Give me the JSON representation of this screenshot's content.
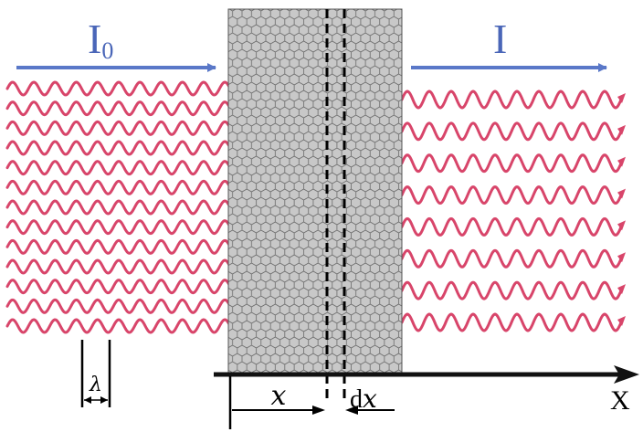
{
  "labels": {
    "incident_intensity_base": "I",
    "incident_intensity_sub": "0",
    "transmitted_intensity": "I",
    "wavelength": "λ",
    "depth": "x",
    "slab_thickness_d": "d",
    "slab_thickness_x": "x",
    "axis": "X"
  },
  "colors": {
    "wave": "#d8456a",
    "intensity_arrow": "#5a78c8",
    "label_blue": "#4a66b8",
    "slab_fill": "#c8c8c8",
    "hex_stroke": "#6a6a6a",
    "axis": "#111111"
  },
  "waves": {
    "incident_rows": 13,
    "transmitted_rows": 8,
    "incident_cycles": 10.5,
    "transmitted_cycles": 10
  }
}
